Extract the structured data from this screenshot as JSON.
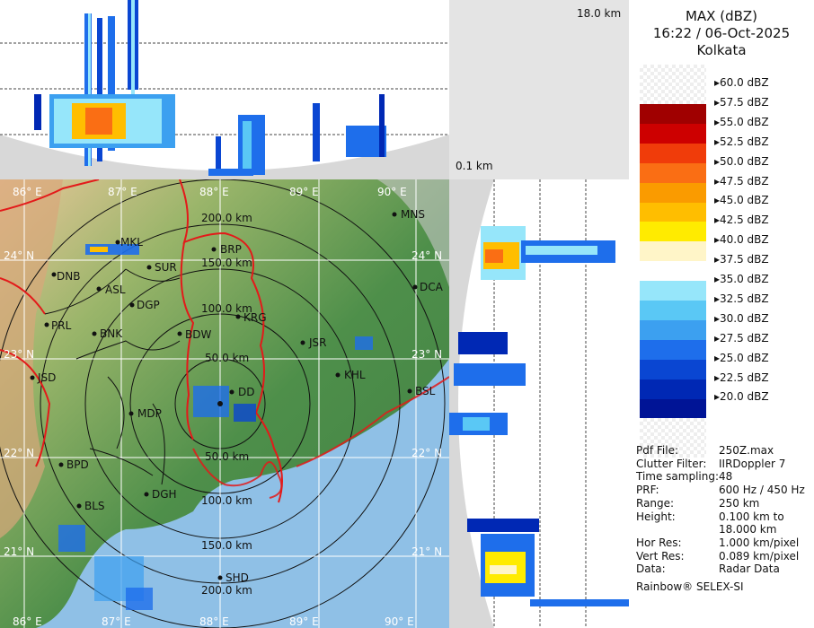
{
  "title": {
    "product": "MAX (dBZ)",
    "datetime": "16:22 / 06-Oct-2025",
    "station": "Kolkata"
  },
  "height_labels": {
    "top": "18.0 km",
    "bottom": "0.1 km"
  },
  "legend": {
    "items": [
      {
        "label": "60.0 dBZ",
        "color": "#ffffff"
      },
      {
        "label": "57.5 dBZ",
        "color": "#a00000"
      },
      {
        "label": "55.0 dBZ",
        "color": "#cd0000"
      },
      {
        "label": "52.5 dBZ",
        "color": "#f03c0a"
      },
      {
        "label": "50.0 dBZ",
        "color": "#fa6e14"
      },
      {
        "label": "47.5 dBZ",
        "color": "#fa9b00"
      },
      {
        "label": "45.0 dBZ",
        "color": "#ffbe00"
      },
      {
        "label": "42.5 dBZ",
        "color": "#ffeb00"
      },
      {
        "label": "40.0 dBZ",
        "color": "#fff5c8"
      },
      {
        "label": "37.5 dBZ",
        "color": "#ffffff"
      },
      {
        "label": "35.0 dBZ",
        "color": "#96e6fa"
      },
      {
        "label": "32.5 dBZ",
        "color": "#5ac8f5"
      },
      {
        "label": "30.0 dBZ",
        "color": "#3ca0f0"
      },
      {
        "label": "27.5 dBZ",
        "color": "#1e6eeb"
      },
      {
        "label": "25.0 dBZ",
        "color": "#0a46d2"
      },
      {
        "label": "22.5 dBZ",
        "color": "#0028b4"
      },
      {
        "label": "20.0 dBZ",
        "color": "#001496"
      }
    ]
  },
  "info": [
    {
      "key": "Pdf File:",
      "value": "250Z.max"
    },
    {
      "key": "Clutter Filter:",
      "value": "IIRDoppler 7"
    },
    {
      "key": "Time sampling:",
      "value": "48"
    },
    {
      "key": "PRF:",
      "value": "600 Hz / 450 Hz"
    },
    {
      "key": "Range:",
      "value": "250 km"
    },
    {
      "key": "Height:",
      "value": "0.100 km to"
    },
    {
      "key": "",
      "value": "18.000 km"
    },
    {
      "key": "Hor Res:",
      "value": "1.000 km/pixel"
    },
    {
      "key": "Vert Res:",
      "value": "0.089 km/pixel"
    },
    {
      "key": "Data:",
      "value": "Radar Data"
    }
  ],
  "footer": "Rainbow® SELEX-SI",
  "map": {
    "lon_labels_top": [
      "86° E",
      "87° E",
      "88° E",
      "89° E",
      "90° E"
    ],
    "lon_labels_bottom": [
      "86° E",
      "87° E",
      "88° E",
      "89° E",
      "90° E"
    ],
    "lat_labels_left": [
      "24° N",
      "23° N",
      "22° N",
      "21° N"
    ],
    "lat_labels_right": [
      "24° N",
      "23° N",
      "22° N",
      "21° N"
    ],
    "range_rings": [
      "50.0 km",
      "100.0 km",
      "150.0 km",
      "200.0 km"
    ],
    "range_rings_south": [
      "50.0 km",
      "100.0 km",
      "150.0 km",
      "200.0 km"
    ],
    "cities": [
      "MNS",
      "BRP",
      "MKL",
      "SUR",
      "DNB",
      "ASL",
      "DCA",
      "DGP",
      "KRG",
      "PRL",
      "BNK",
      "BDW",
      "JSR",
      "KHL",
      "JSD",
      "DD",
      "BSL",
      "MDP",
      "BPD",
      "DGH",
      "BLS",
      "SHD"
    ]
  }
}
